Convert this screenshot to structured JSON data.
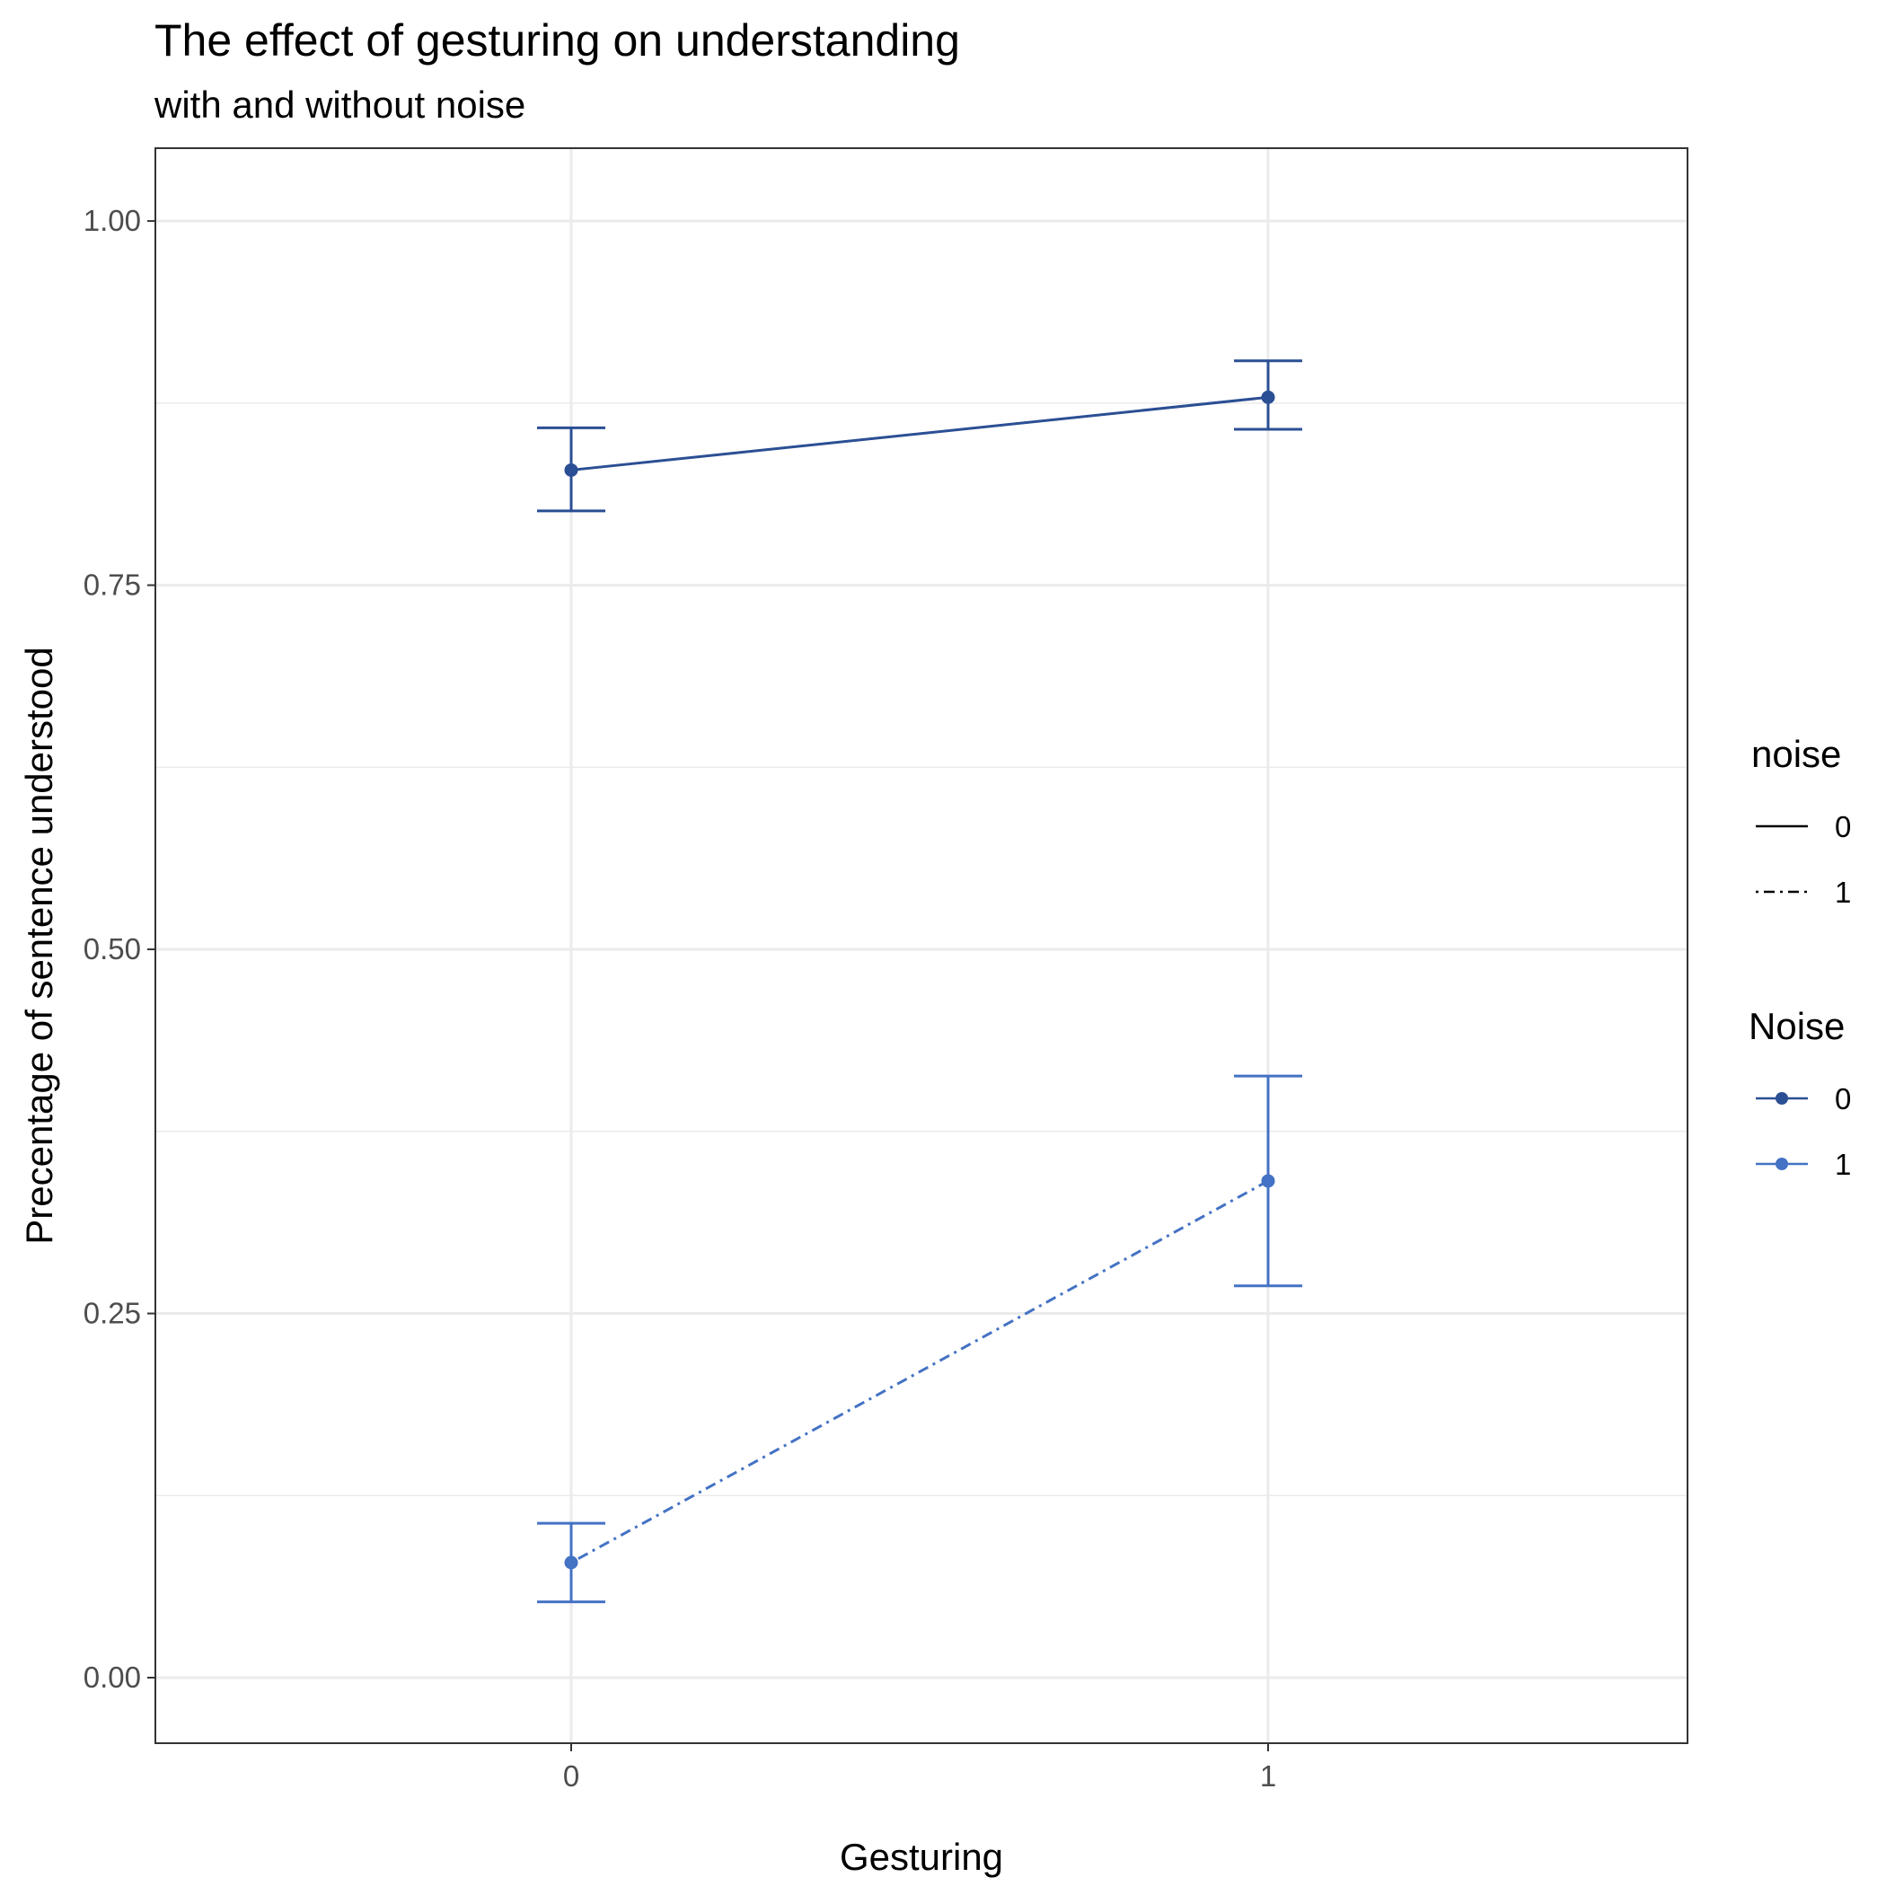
{
  "chart_data": {
    "type": "line",
    "title": "The effect of gesturing on understanding",
    "subtitle": "with and without noise",
    "xlabel": "Gesturing",
    "ylabel": "Precentage of sentence understood",
    "categories": [
      "0",
      "1"
    ],
    "ylim": [
      -0.045,
      1.05
    ],
    "yticks": [
      0.0,
      0.25,
      0.5,
      0.75,
      1.0
    ],
    "ytick_labels": [
      "0.00",
      "0.25",
      "0.50",
      "0.75",
      "1.00"
    ],
    "grid": true,
    "legend_position": "right",
    "series": [
      {
        "name": "0",
        "color": "#2b4f94",
        "linetype": "solid",
        "values": [
          0.829,
          0.879
        ],
        "error_low": [
          0.801,
          0.857
        ],
        "error_high": [
          0.858,
          0.904
        ]
      },
      {
        "name": "1",
        "color": "#4472c4",
        "linetype": "dotdash",
        "values": [
          0.079,
          0.341
        ],
        "error_low": [
          0.052,
          0.269
        ],
        "error_high": [
          0.106,
          0.413
        ]
      }
    ],
    "legends": [
      {
        "title": "noise",
        "kind": "linetype",
        "entries": [
          "0",
          "1"
        ]
      },
      {
        "title": "Noise",
        "kind": "color",
        "entries": [
          "0",
          "1"
        ]
      }
    ]
  }
}
